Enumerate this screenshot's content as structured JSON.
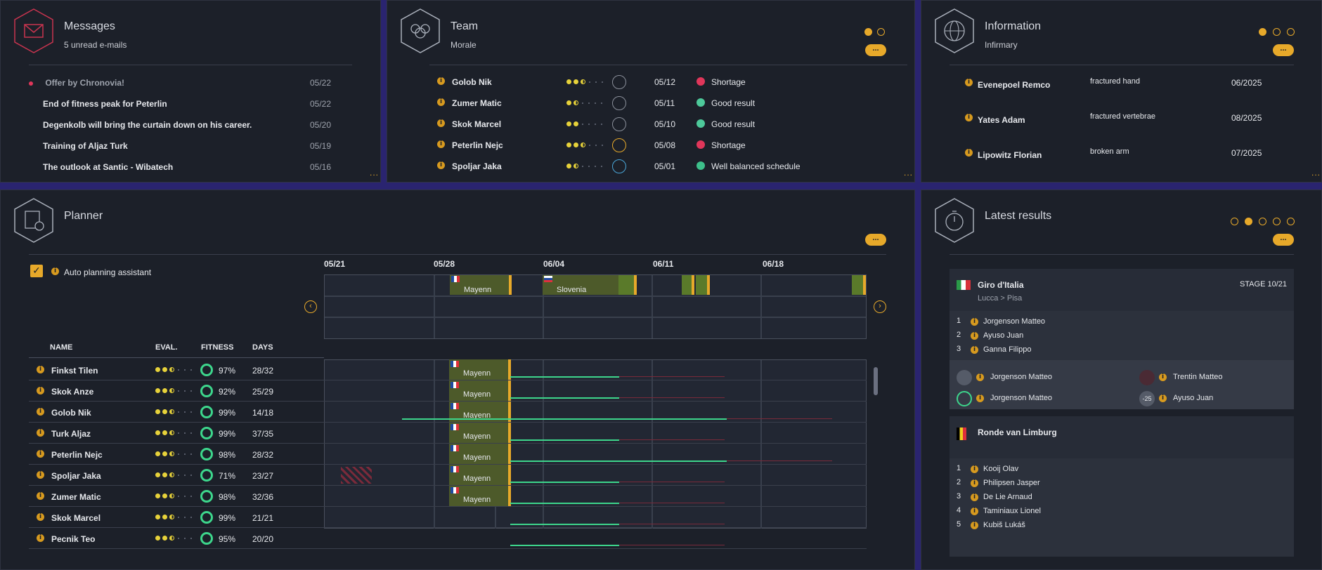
{
  "messages": {
    "title": "Messages",
    "subtitle": "5 unread e-mails",
    "items": [
      {
        "text": "Offer by Chronovia!",
        "date": "05/22"
      },
      {
        "text": "End of fitness peak for Peterlin",
        "date": "05/22"
      },
      {
        "text": "Degenkolb will bring the curtain down on his career.",
        "date": "05/20"
      },
      {
        "text": "Training of Aljaz Turk",
        "date": "05/19"
      },
      {
        "text": "The outlook at Santic - Wibatech",
        "date": "05/16"
      }
    ],
    "more": "..."
  },
  "team": {
    "title": "Team",
    "subtitle": "Morale",
    "btn": "...",
    "more": "...",
    "rows": [
      {
        "name": "Golob Nik",
        "date": "05/12",
        "status": "Shortage",
        "status_color": "#e0365a"
      },
      {
        "name": "Zumer Matic",
        "date": "05/11",
        "status": "Good result",
        "status_color": "#4dc99a"
      },
      {
        "name": "Skok Marcel",
        "date": "05/10",
        "status": "Good result",
        "status_color": "#4dc99a"
      },
      {
        "name": "Peterlin Nejc",
        "date": "05/08",
        "status": "Shortage",
        "status_color": "#e0365a"
      },
      {
        "name": "Spoljar Jaka",
        "date": "05/01",
        "status": "Well balanced schedule",
        "status_color": "#3dbf8a"
      }
    ]
  },
  "information": {
    "title": "Information",
    "subtitle": "Infirmary",
    "btn": "...",
    "more": "...",
    "rows": [
      {
        "name": "Evenepoel Remco",
        "injury": "fractured hand",
        "date": "06/2025"
      },
      {
        "name": "Yates Adam",
        "injury": "fractured vertebrae",
        "date": "08/2025"
      },
      {
        "name": "Lipowitz Florian",
        "injury": "broken arm",
        "date": "07/2025"
      }
    ]
  },
  "planner": {
    "title": "Planner",
    "btn": "...",
    "auto_label": "Auto planning assistant",
    "weeks": [
      "05/21",
      "05/28",
      "06/04",
      "06/11",
      "06/18"
    ],
    "races": [
      "Mayenn",
      "Slovenia"
    ],
    "headers": {
      "name": "NAME",
      "eval": "EVAL.",
      "fitness": "FITNESS",
      "days": "DAYS"
    },
    "riders": [
      {
        "name": "Finkst Tilen",
        "fitness": "97%",
        "days": "28/32",
        "race": "Mayenn"
      },
      {
        "name": "Skok Anze",
        "fitness": "92%",
        "days": "25/29",
        "race": "Mayenn"
      },
      {
        "name": "Golob Nik",
        "fitness": "99%",
        "days": "14/18",
        "race": "Mayenn"
      },
      {
        "name": "Turk Aljaz",
        "fitness": "99%",
        "days": "37/35",
        "race": "Mayenn"
      },
      {
        "name": "Peterlin Nejc",
        "fitness": "98%",
        "days": "28/32",
        "race": "Mayenn"
      },
      {
        "name": "Spoljar Jaka",
        "fitness": "71%",
        "days": "23/27",
        "race": "Mayenn"
      },
      {
        "name": "Zumer Matic",
        "fitness": "98%",
        "days": "32/36",
        "race": "Mayenn"
      },
      {
        "name": "Skok Marcel",
        "fitness": "99%",
        "days": "21/21",
        "race": ""
      },
      {
        "name": "Pecnik Teo",
        "fitness": "95%",
        "days": "20/20",
        "race": ""
      }
    ]
  },
  "results": {
    "title": "Latest results",
    "btn": "...",
    "race1": {
      "name": "Giro d'Italia",
      "stage": "STAGE 10/21",
      "route": "Lucca > Pisa",
      "top": [
        {
          "pos": "1",
          "name": "Jorgenson Matteo"
        },
        {
          "pos": "2",
          "name": "Ayuso Juan"
        },
        {
          "pos": "3",
          "name": "Ganna Filippo"
        }
      ],
      "jerseys": [
        {
          "name": "Jorgenson Matteo"
        },
        {
          "name": "Trentin Matteo"
        },
        {
          "name": "Jorgenson Matteo"
        },
        {
          "name": "Ayuso Juan",
          "badge": "-25"
        }
      ]
    },
    "race2": {
      "name": "Ronde van Limburg",
      "top": [
        {
          "pos": "1",
          "name": "Kooij Olav"
        },
        {
          "pos": "2",
          "name": "Philipsen Jasper"
        },
        {
          "pos": "3",
          "name": "De Lie Arnaud"
        },
        {
          "pos": "4",
          "name": "Taminiaux Lionel"
        },
        {
          "pos": "5",
          "name": "Kubiš Lukáš"
        }
      ]
    }
  },
  "colors": {
    "accent": "#e7a92a",
    "green": "#3dd68c",
    "red": "#e0365a"
  }
}
